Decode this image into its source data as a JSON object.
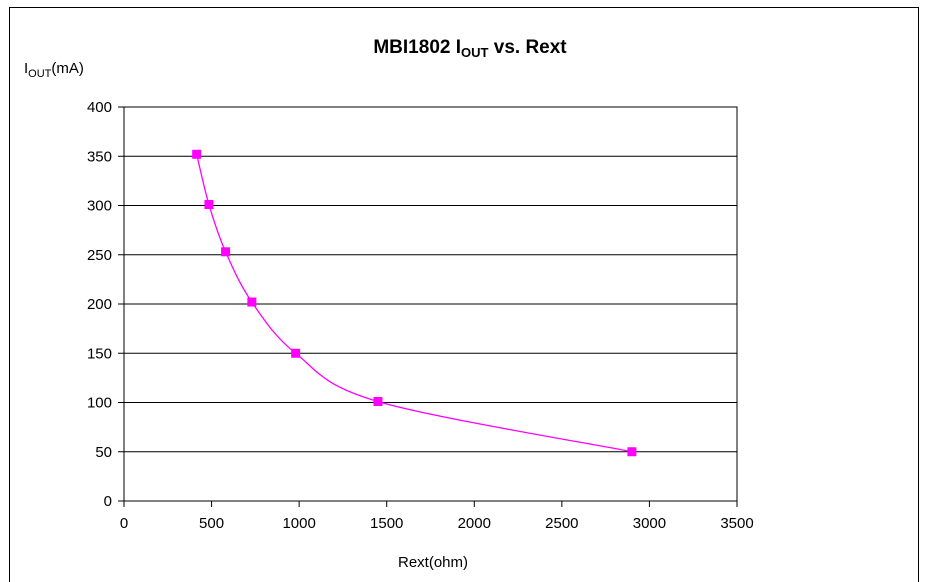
{
  "chart_data": {
    "type": "line",
    "title": "MBI1802 I",
    "title_subscript": "OUT",
    "title_suffix": " vs. Rext",
    "ylabel": "I",
    "ylabel_subscript": "OUT",
    "ylabel_suffix": "(mA)",
    "xlabel": "Rext(ohm)",
    "xlim": [
      0,
      3500
    ],
    "ylim": [
      0,
      400
    ],
    "x_ticks": [
      0,
      500,
      1000,
      1500,
      2000,
      2500,
      3000,
      3500
    ],
    "y_ticks": [
      0,
      50,
      100,
      150,
      200,
      250,
      300,
      350,
      400
    ],
    "grid": "horizontal",
    "series": [
      {
        "color": "#ff00ff",
        "marker": "square",
        "x": [
          415,
          485,
          580,
          730,
          980,
          1450,
          2900
        ],
        "y": [
          352,
          301,
          253,
          202,
          150,
          101,
          50
        ]
      }
    ]
  }
}
